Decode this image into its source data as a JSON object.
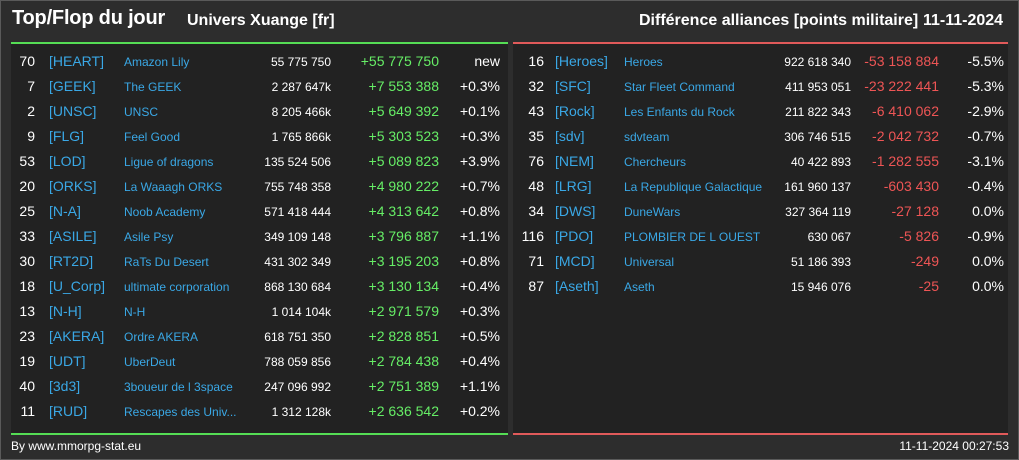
{
  "header": {
    "title": "Top/Flop du jour",
    "universe": "Univers Xuange [fr]",
    "subtitle": "Différence alliances [points militaire]",
    "date": "11-11-2024"
  },
  "colors": {
    "gain": "#66ee66",
    "loss": "#ee5555",
    "link": "#3aa8e6",
    "top_border": "#55dd55",
    "flop_border": "#e05a5a"
  },
  "top": [
    {
      "rank": "70",
      "tag": "[HEART]",
      "name": "Amazon Lily",
      "points": "55 775 750",
      "diff": "+55 775 750",
      "pct": "new"
    },
    {
      "rank": "7",
      "tag": "[GEEK]",
      "name": "The GEEK",
      "points": "2 287 647k",
      "diff": "+7 553 388",
      "pct": "+0.3%"
    },
    {
      "rank": "2",
      "tag": "[UNSC]",
      "name": "UNSC",
      "points": "8 205 466k",
      "diff": "+5 649 392",
      "pct": "+0.1%"
    },
    {
      "rank": "9",
      "tag": "[FLG]",
      "name": "Feel Good",
      "points": "1 765 866k",
      "diff": "+5 303 523",
      "pct": "+0.3%"
    },
    {
      "rank": "53",
      "tag": "[LOD]",
      "name": "Ligue of dragons",
      "points": "135 524 506",
      "diff": "+5 089 823",
      "pct": "+3.9%"
    },
    {
      "rank": "20",
      "tag": "[ORKS]",
      "name": "La Waaagh ORKS",
      "points": "755 748 358",
      "diff": "+4 980 222",
      "pct": "+0.7%"
    },
    {
      "rank": "25",
      "tag": "[N-A]",
      "name": "Noob Academy",
      "points": "571 418 444",
      "diff": "+4 313 642",
      "pct": "+0.8%"
    },
    {
      "rank": "33",
      "tag": "[ASILE]",
      "name": "Asile Psy",
      "points": "349 109 148",
      "diff": "+3 796 887",
      "pct": "+1.1%"
    },
    {
      "rank": "30",
      "tag": "[RT2D]",
      "name": "RaTs Du Desert",
      "points": "431 302 349",
      "diff": "+3 195 203",
      "pct": "+0.8%"
    },
    {
      "rank": "18",
      "tag": "[U_Corp]",
      "name": "ultimate corporation",
      "points": "868 130 684",
      "diff": "+3 130 134",
      "pct": "+0.4%"
    },
    {
      "rank": "13",
      "tag": "[N-H]",
      "name": "N-H",
      "points": "1 014 104k",
      "diff": "+2 971 579",
      "pct": "+0.3%"
    },
    {
      "rank": "23",
      "tag": "[AKERA]",
      "name": "Ordre AKERA",
      "points": "618 751 350",
      "diff": "+2 828 851",
      "pct": "+0.5%"
    },
    {
      "rank": "19",
      "tag": "[UDT]",
      "name": "UberDeut",
      "points": "788 059 856",
      "diff": "+2 784 438",
      "pct": "+0.4%"
    },
    {
      "rank": "40",
      "tag": "[3d3]",
      "name": "3boueur de l 3space",
      "points": "247 096 992",
      "diff": "+2 751 389",
      "pct": "+1.1%"
    },
    {
      "rank": "11",
      "tag": "[RUD]",
      "name": "Rescapes des Univ...",
      "points": "1 312 128k",
      "diff": "+2 636 542",
      "pct": "+0.2%"
    }
  ],
  "flop": [
    {
      "rank": "16",
      "tag": "[Heroes]",
      "name": "Heroes",
      "points": "922 618 340",
      "diff": "-53 158 884",
      "pct": "-5.5%"
    },
    {
      "rank": "32",
      "tag": "[SFC]",
      "name": "Star Fleet Command",
      "points": "411 953 051",
      "diff": "-23 222 441",
      "pct": "-5.3%"
    },
    {
      "rank": "43",
      "tag": "[Rock]",
      "name": "Les Enfants du Rock",
      "points": "211 822 343",
      "diff": "-6 410 062",
      "pct": "-2.9%"
    },
    {
      "rank": "35",
      "tag": "[sdv]",
      "name": "sdvteam",
      "points": "306 746 515",
      "diff": "-2 042 732",
      "pct": "-0.7%"
    },
    {
      "rank": "76",
      "tag": "[NEM]",
      "name": "Chercheurs",
      "points": "40 422 893",
      "diff": "-1 282 555",
      "pct": "-3.1%"
    },
    {
      "rank": "48",
      "tag": "[LRG]",
      "name": "La Republique Galactique",
      "points": "161 960 137",
      "diff": "-603 430",
      "pct": "-0.4%"
    },
    {
      "rank": "34",
      "tag": "[DWS]",
      "name": "DuneWars",
      "points": "327 364 119",
      "diff": "-27 128",
      "pct": "0.0%"
    },
    {
      "rank": "116",
      "tag": "[PDO]",
      "name": "PLOMBIER DE L OUEST",
      "points": "630 067",
      "diff": "-5 826",
      "pct": "-0.9%"
    },
    {
      "rank": "71",
      "tag": "[MCD]",
      "name": "Universal",
      "points": "51 186 393",
      "diff": "-249",
      "pct": "0.0%"
    },
    {
      "rank": "87",
      "tag": "[Aseth]",
      "name": "Aseth",
      "points": "15 946 076",
      "diff": "-25",
      "pct": "0.0%"
    }
  ],
  "footer": {
    "credit": "By www.mmorpg-stat.eu",
    "timestamp": "11-11-2024 00:27:53"
  }
}
